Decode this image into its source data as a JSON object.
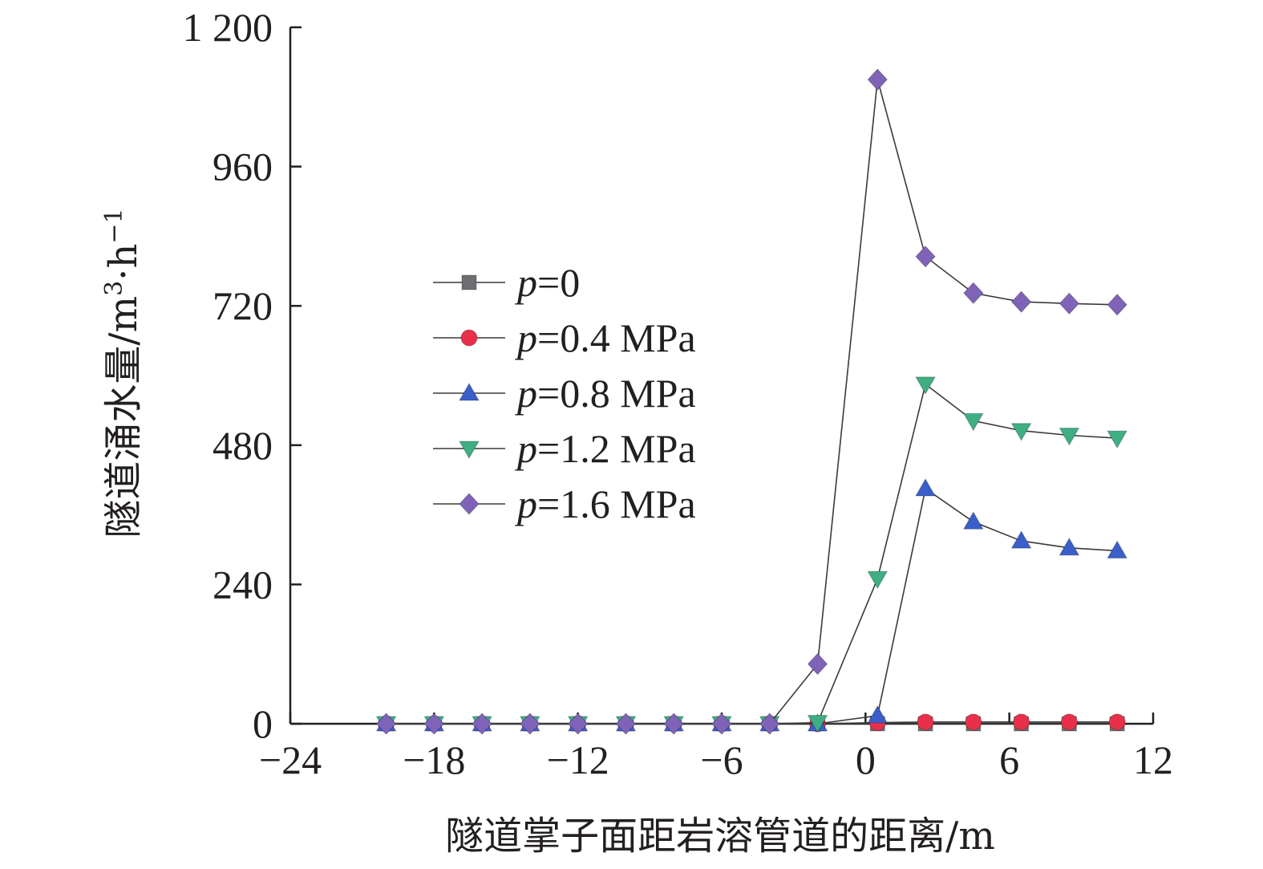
{
  "chart_data": {
    "type": "line",
    "title": "",
    "xlabel": "隧道掌子面距岩溶管道的距离/m",
    "ylabel": "隧道涌水量/m³·h⁻¹",
    "ylabel_parts": {
      "main": "隧道涌水量/m",
      "sup1": "3",
      "mid": "·h",
      "sup2": "−1"
    },
    "xlim": [
      -24,
      12
    ],
    "ylim": [
      0,
      1200
    ],
    "xticks": [
      -24,
      -18,
      -12,
      -6,
      0,
      6,
      12
    ],
    "xtick_labels": [
      "−24",
      "−18",
      "−12",
      "−6",
      "0",
      "6",
      "12"
    ],
    "yticks": [
      0,
      240,
      480,
      720,
      960,
      1200
    ],
    "ytick_labels": [
      "0",
      "240",
      "480",
      "720",
      "960",
      "1 200"
    ],
    "grid": false,
    "legend_position": "center-left",
    "x": [
      -20,
      -18,
      -16,
      -14,
      -12,
      -10,
      -8,
      -6,
      -4,
      -2,
      0.5,
      2.5,
      4.5,
      6.5,
      8.5,
      10.5
    ],
    "series": [
      {
        "name": "p=0",
        "legend_var": "p",
        "legend_rest": "=0",
        "color": "#6d6e71",
        "marker": "square",
        "values": [
          0,
          0,
          0,
          0,
          0,
          0,
          0,
          0,
          0,
          0,
          0,
          0,
          0,
          0,
          0,
          0
        ]
      },
      {
        "name": "p=0.4 MPa",
        "legend_var": "p",
        "legend_rest": "=0.4 MPa",
        "color": "#e8304a",
        "marker": "circle",
        "values": [
          0,
          0,
          0,
          0,
          0,
          0,
          0,
          0,
          0,
          0,
          2,
          3,
          3,
          3,
          3,
          3
        ]
      },
      {
        "name": "p=0.8 MPa",
        "legend_var": "p",
        "legend_rest": "=0.8 MPa",
        "color": "#3b5fc8",
        "marker": "triangle-up",
        "values": [
          0,
          0,
          0,
          0,
          0,
          0,
          0,
          0,
          0,
          0,
          14,
          405,
          348,
          315,
          303,
          298
        ]
      },
      {
        "name": "p=1.2 MPa",
        "legend_var": "p",
        "legend_rest": "=1.2 MPa",
        "color": "#3fae83",
        "marker": "triangle-down",
        "values": [
          0,
          0,
          0,
          0,
          0,
          0,
          0,
          0,
          0,
          2,
          250,
          585,
          522,
          505,
          497,
          492
        ]
      },
      {
        "name": "p=1.6 MPa",
        "legend_var": "p",
        "legend_rest": "=1.6 MPa",
        "color": "#7f63b8",
        "marker": "diamond",
        "values": [
          0,
          0,
          0,
          0,
          0,
          0,
          0,
          0,
          0,
          103,
          1110,
          805,
          742,
          727,
          724,
          722
        ]
      }
    ]
  }
}
